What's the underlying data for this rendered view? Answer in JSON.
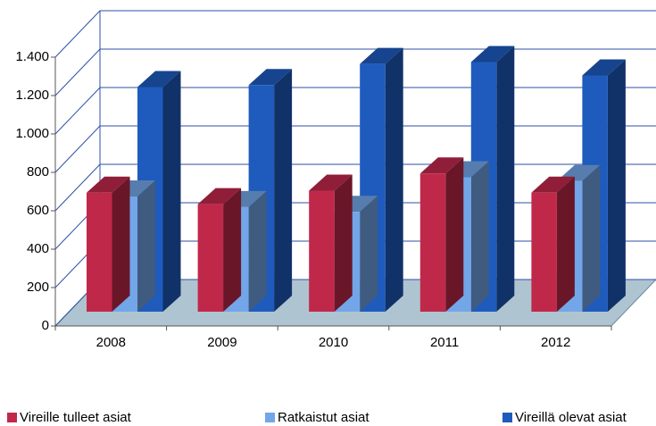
{
  "chart_data": {
    "type": "bar3d",
    "categories": [
      "2008",
      "2009",
      "2010",
      "2011",
      "2012"
    ],
    "series": [
      {
        "name": "Vireille tulleet asiat",
        "color": "#c0284a",
        "values": [
          620,
          560,
          630,
          720,
          620
        ]
      },
      {
        "name": "Ratkaistut asiat",
        "color": "#73a6e8",
        "values": [
          600,
          545,
          520,
          700,
          680
        ]
      },
      {
        "name": "Vireillä olevat asiat",
        "color": "#1f5bbd",
        "values": [
          1170,
          1180,
          1290,
          1300,
          1230
        ]
      }
    ],
    "ylim": [
      0,
      1400
    ],
    "yticks": [
      0,
      200,
      400,
      600,
      800,
      {
        "value": 1000,
        "label": "1.000"
      },
      {
        "value": 1200,
        "label": "1.200"
      },
      {
        "value": 1400,
        "label": "1.400"
      }
    ],
    "grid": true,
    "legend": "bottom"
  }
}
